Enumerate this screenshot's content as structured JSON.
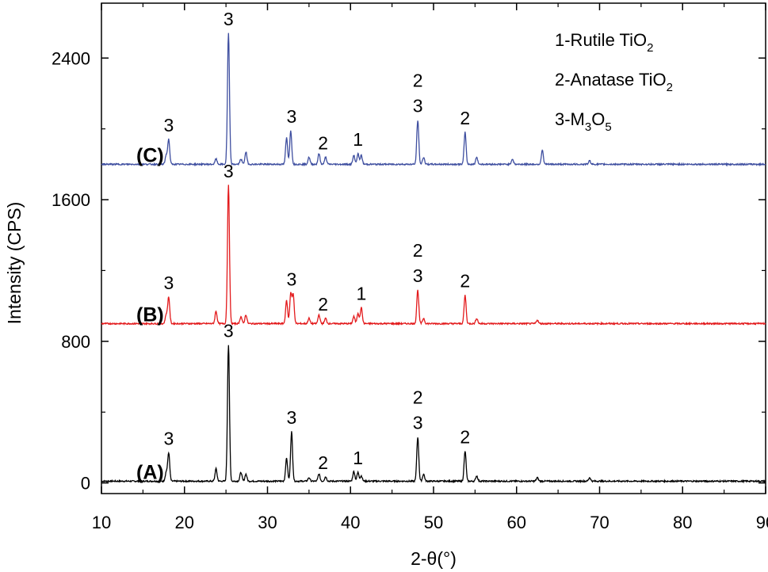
{
  "chart_data": {
    "type": "line",
    "xlabel": "2-θ(°)",
    "ylabel": "Intensity (CPS)",
    "xlim": [
      10,
      90
    ],
    "ylim": [
      -60,
      2710
    ],
    "xticks": [
      10,
      20,
      30,
      40,
      50,
      60,
      70,
      80,
      90
    ],
    "yticks": [
      0,
      800,
      1600,
      2400
    ],
    "grid": false,
    "legend_position": "top-right",
    "legend": [
      {
        "prefix": "1-Rutile TiO",
        "sub": "2",
        "suffix": ""
      },
      {
        "prefix": "2-Anatase TiO",
        "sub": "2",
        "suffix": ""
      },
      {
        "prefix": "3-M",
        "sub": "3",
        "mid": "O",
        "sub2": "5"
      }
    ],
    "series": [
      {
        "name": "(A)",
        "color": "#000000",
        "baseline": 10,
        "peaks": [
          [
            17.8,
            50
          ],
          [
            18.1,
            160
          ],
          [
            23.8,
            70
          ],
          [
            25.3,
            770
          ],
          [
            26.8,
            50
          ],
          [
            27.4,
            40
          ],
          [
            32.3,
            130
          ],
          [
            32.9,
            280
          ],
          [
            35.0,
            20
          ],
          [
            36.2,
            40
          ],
          [
            37.0,
            25
          ],
          [
            40.4,
            55
          ],
          [
            40.9,
            50
          ],
          [
            41.3,
            30
          ],
          [
            48.1,
            250
          ],
          [
            48.8,
            40
          ],
          [
            53.8,
            170
          ],
          [
            55.2,
            30
          ],
          [
            62.5,
            20
          ],
          [
            68.8,
            20
          ]
        ],
        "peak_labels": [
          {
            "x": 18.1,
            "text": "3"
          },
          {
            "x": 25.3,
            "text": "3"
          },
          {
            "x": 32.9,
            "text": "3"
          },
          {
            "x": 36.7,
            "text": "2"
          },
          {
            "x": 40.9,
            "text": "1"
          },
          {
            "x": 48.1,
            "text": "2",
            "text2": "3"
          },
          {
            "x": 53.8,
            "text": "2"
          }
        ]
      },
      {
        "name": "(B)",
        "color": "#e31a1c",
        "baseline": 900,
        "peaks": [
          [
            17.8,
            50
          ],
          [
            18.1,
            150
          ],
          [
            23.8,
            70
          ],
          [
            25.3,
            780
          ],
          [
            26.8,
            40
          ],
          [
            27.4,
            50
          ],
          [
            32.3,
            130
          ],
          [
            32.8,
            170
          ],
          [
            33.1,
            160
          ],
          [
            35.0,
            30
          ],
          [
            36.2,
            50
          ],
          [
            37.0,
            30
          ],
          [
            40.4,
            40
          ],
          [
            40.9,
            60
          ],
          [
            41.3,
            90
          ],
          [
            48.1,
            190
          ],
          [
            48.8,
            30
          ],
          [
            53.8,
            160
          ],
          [
            55.2,
            30
          ],
          [
            62.5,
            20
          ]
        ],
        "peak_labels": [
          {
            "x": 18.1,
            "text": "3"
          },
          {
            "x": 25.3,
            "text": "3"
          },
          {
            "x": 32.9,
            "text": "3"
          },
          {
            "x": 36.7,
            "text": "2"
          },
          {
            "x": 41.3,
            "text": "1"
          },
          {
            "x": 48.1,
            "text": "2",
            "text2": "3"
          },
          {
            "x": 53.8,
            "text": "2"
          }
        ]
      },
      {
        "name": "(C)",
        "color": "#3f4fa0",
        "baseline": 1800,
        "peaks": [
          [
            17.8,
            50
          ],
          [
            18.1,
            140
          ],
          [
            23.8,
            30
          ],
          [
            25.3,
            740
          ],
          [
            26.8,
            30
          ],
          [
            27.4,
            70
          ],
          [
            32.3,
            150
          ],
          [
            32.8,
            190
          ],
          [
            35.0,
            40
          ],
          [
            36.2,
            60
          ],
          [
            37.0,
            40
          ],
          [
            40.4,
            50
          ],
          [
            40.9,
            60
          ],
          [
            41.3,
            50
          ],
          [
            48.1,
            250
          ],
          [
            48.8,
            40
          ],
          [
            53.8,
            180
          ],
          [
            55.2,
            40
          ],
          [
            59.5,
            30
          ],
          [
            63.1,
            80
          ],
          [
            68.8,
            20
          ]
        ],
        "peak_labels": [
          {
            "x": 18.1,
            "text": "3"
          },
          {
            "x": 25.3,
            "text": "3"
          },
          {
            "x": 32.9,
            "text": "3"
          },
          {
            "x": 36.7,
            "text": "2"
          },
          {
            "x": 40.9,
            "text": "1"
          },
          {
            "x": 48.1,
            "text": "2",
            "text2": "3"
          },
          {
            "x": 53.8,
            "text": "2"
          }
        ]
      }
    ]
  }
}
